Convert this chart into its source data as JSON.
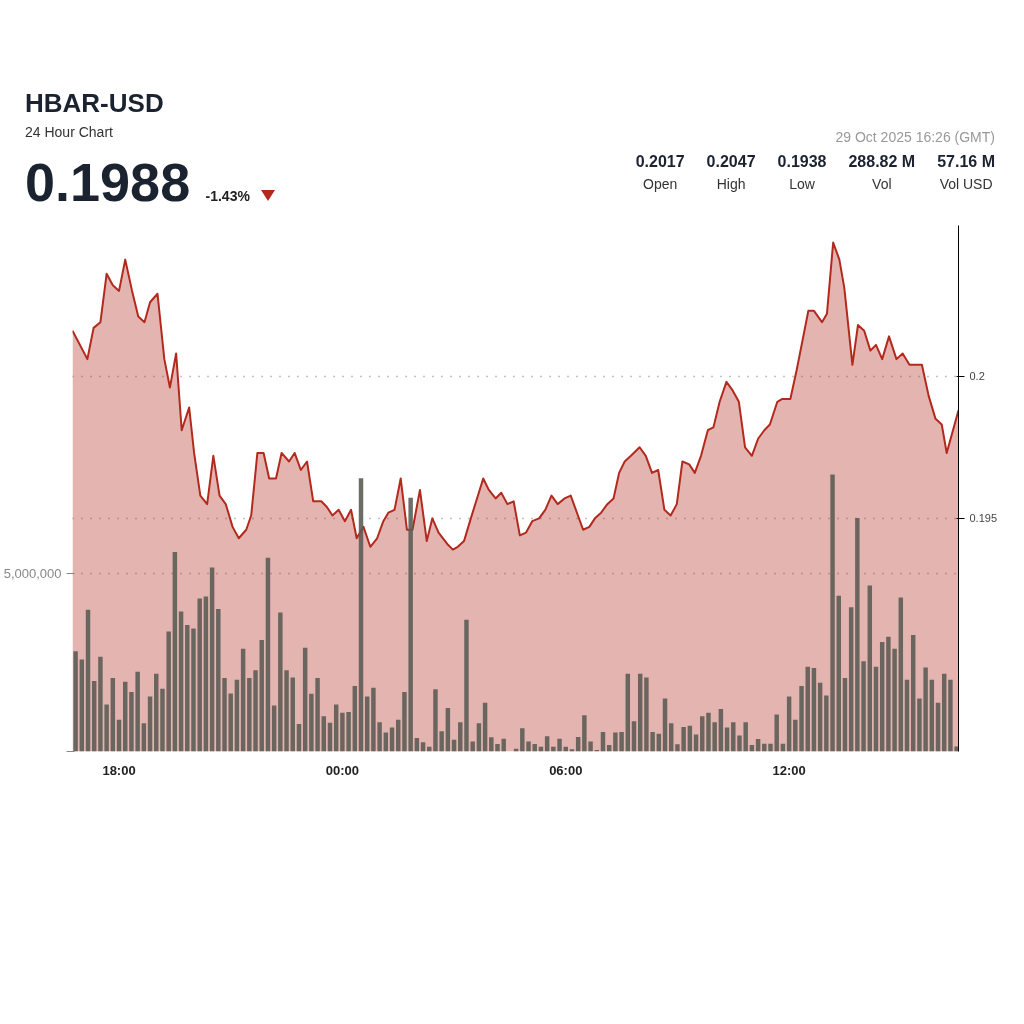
{
  "chart_data": {
    "type": "area",
    "title": "HBAR-USD",
    "subtitle": "24 Hour Chart",
    "annotations": [
      "0.1988",
      "-1.43%",
      "0.2017",
      "Open",
      "0.2047",
      "High",
      "0.1938",
      "Low",
      "288.82 M",
      "Vol",
      "57.16 M",
      "Vol USD",
      "29 Oct 2025 16:26 (GMT)"
    ],
    "xlim": [
      "2025-10-28T16:45",
      "2025-10-29T16:33"
    ],
    "xticks": [
      {
        "value": "2025-10-28T18:00",
        "label": "18:00"
      },
      {
        "value": "2025-10-29T00:00",
        "label": "00:00"
      },
      {
        "value": "2025-10-29T06:00",
        "label": "06:00"
      },
      {
        "value": "2025-10-29T12:00",
        "label": "12:00"
      }
    ],
    "ylim": [
      0.1868,
      0.2053
    ],
    "yticks": [
      0.195,
      0.2
    ],
    "y2lim": [
      0,
      14760000
    ],
    "y2ticks": [
      {
        "value": 0,
        "label": null
      },
      {
        "value": 5000000,
        "label": "5,000,000"
      }
    ],
    "grid": "y",
    "series": [
      {
        "color": "#b22a1e",
        "x": [
          "2025-10-28T16:45",
          "2025-10-28T17:09",
          "2025-10-28T17:19",
          "2025-10-28T17:30",
          "2025-10-28T17:40",
          "2025-10-28T17:50",
          "2025-10-28T18:00",
          "2025-10-28T18:10",
          "2025-10-28T18:21",
          "2025-10-28T18:31",
          "2025-10-28T18:41",
          "2025-10-28T18:50",
          "2025-10-28T19:02",
          "2025-10-28T19:13",
          "2025-10-28T19:22",
          "2025-10-28T19:32",
          "2025-10-28T19:41",
          "2025-10-28T19:53",
          "2025-10-28T20:01",
          "2025-10-28T20:11",
          "2025-10-28T20:22",
          "2025-10-28T20:32",
          "2025-10-28T20:42",
          "2025-10-28T20:52",
          "2025-10-28T21:03",
          "2025-10-28T21:13",
          "2025-10-28T21:25",
          "2025-10-28T21:33",
          "2025-10-28T21:43",
          "2025-10-28T21:53",
          "2025-10-28T22:02",
          "2025-10-28T22:13",
          "2025-10-28T22:22",
          "2025-10-28T22:34",
          "2025-10-28T22:43",
          "2025-10-28T22:53",
          "2025-10-28T23:03",
          "2025-10-28T23:13",
          "2025-10-28T23:26",
          "2025-10-28T23:35",
          "2025-10-28T23:44",
          "2025-10-28T23:54",
          "2025-10-29T00:04",
          "2025-10-29T00:14",
          "2025-10-29T00:23",
          "2025-10-29T00:34",
          "2025-10-29T00:45",
          "2025-10-29T00:56",
          "2025-10-29T01:06",
          "2025-10-29T01:14",
          "2025-10-29T01:24",
          "2025-10-29T01:34",
          "2025-10-29T01:44",
          "2025-10-29T01:53",
          "2025-10-29T02:05",
          "2025-10-29T02:16",
          "2025-10-29T02:25",
          "2025-10-29T02:35",
          "2025-10-29T02:49",
          "2025-10-29T02:58",
          "2025-10-29T03:06",
          "2025-10-29T03:16",
          "2025-10-29T03:27",
          "2025-10-29T03:37",
          "2025-10-29T03:47",
          "2025-10-29T03:56",
          "2025-10-29T04:07",
          "2025-10-29T04:16",
          "2025-10-29T04:26",
          "2025-10-29T04:36",
          "2025-10-29T04:46",
          "2025-10-29T04:56",
          "2025-10-29T05:06",
          "2025-10-29T05:17",
          "2025-10-29T05:27",
          "2025-10-29T05:37",
          "2025-10-29T05:47",
          "2025-10-29T05:58",
          "2025-10-29T06:08",
          "2025-10-29T06:28",
          "2025-10-29T06:38",
          "2025-10-29T06:47",
          "2025-10-29T06:57",
          "2025-10-29T07:07",
          "2025-10-29T07:17",
          "2025-10-29T07:26",
          "2025-10-29T07:35",
          "2025-10-29T07:45",
          "2025-10-29T07:59",
          "2025-10-29T08:09",
          "2025-10-29T08:19",
          "2025-10-29T08:29",
          "2025-10-29T08:39",
          "2025-10-29T08:49",
          "2025-10-29T08:59",
          "2025-10-29T09:08",
          "2025-10-29T09:19",
          "2025-10-29T09:28",
          "2025-10-29T09:38",
          "2025-10-29T09:49",
          "2025-10-29T09:58",
          "2025-10-29T10:08",
          "2025-10-29T10:19",
          "2025-10-29T10:29",
          "2025-10-29T10:39",
          "2025-10-29T10:49",
          "2025-10-29T11:00",
          "2025-10-29T11:10",
          "2025-10-29T11:20",
          "2025-10-29T11:29",
          "2025-10-29T11:41",
          "2025-10-29T11:49",
          "2025-10-29T12:02",
          "2025-10-29T12:12",
          "2025-10-29T12:22",
          "2025-10-29T12:31",
          "2025-10-29T12:40",
          "2025-10-29T12:53",
          "2025-10-29T13:01",
          "2025-10-29T13:11",
          "2025-10-29T13:21",
          "2025-10-29T13:29",
          "2025-10-29T13:42",
          "2025-10-29T13:51",
          "2025-10-29T14:01",
          "2025-10-29T14:11",
          "2025-10-29T14:20",
          "2025-10-29T14:30",
          "2025-10-29T14:41",
          "2025-10-29T14:53",
          "2025-10-29T15:03",
          "2025-10-29T15:14",
          "2025-10-29T15:27",
          "2025-10-29T15:34",
          "2025-10-29T15:45",
          "2025-10-29T15:56",
          "2025-10-29T16:06",
          "2025-10-29T16:14",
          "2025-10-29T16:33"
        ],
        "values": [
          0.2016,
          0.2006,
          0.2017,
          0.2019,
          0.2036,
          0.2032,
          0.203,
          0.2041,
          0.203,
          0.2021,
          0.2019,
          0.2026,
          0.2029,
          0.2006,
          0.1996,
          0.2008,
          0.1981,
          0.1989,
          0.1973,
          0.1958,
          0.1955,
          0.1972,
          0.1958,
          0.1955,
          0.1947,
          0.1943,
          0.1946,
          0.1951,
          0.1973,
          0.1973,
          0.1964,
          0.1964,
          0.1973,
          0.197,
          0.1973,
          0.1967,
          0.197,
          0.1956,
          0.1956,
          0.1954,
          0.1951,
          0.1953,
          0.1949,
          0.1953,
          0.1943,
          0.1947,
          0.194,
          0.1943,
          0.1949,
          0.1952,
          0.1953,
          0.1964,
          0.1946,
          0.1946,
          0.196,
          0.1942,
          0.195,
          0.1945,
          0.1941,
          0.1939,
          0.194,
          0.1942,
          0.195,
          0.1957,
          0.1964,
          0.196,
          0.1957,
          0.1959,
          0.1955,
          0.1956,
          0.1944,
          0.1945,
          0.1949,
          0.195,
          0.1953,
          0.1958,
          0.1955,
          0.1957,
          0.1958,
          0.1946,
          0.1947,
          0.195,
          0.1952,
          0.1955,
          0.1957,
          0.1966,
          0.197,
          0.1972,
          0.1975,
          0.1972,
          0.1966,
          0.1967,
          0.1953,
          0.1951,
          0.1955,
          0.197,
          0.1969,
          0.1966,
          0.1972,
          0.1981,
          0.1982,
          0.1991,
          0.1998,
          0.1995,
          0.1991,
          0.1975,
          0.1972,
          0.1978,
          0.1981,
          0.1983,
          0.1991,
          0.1992,
          0.1992,
          0.2002,
          0.2013,
          0.2023,
          0.2023,
          0.2019,
          0.2022,
          0.2047,
          0.2041,
          0.2031,
          0.2004,
          0.2018,
          0.2016,
          0.2009,
          0.2011,
          0.2006,
          0.2014,
          0.2006,
          0.2008,
          0.2004,
          0.2004,
          0.2004,
          0.1993,
          0.1985,
          0.1983,
          0.1973,
          0.1988
        ]
      },
      {
        "type": "bar",
        "axis": "y2",
        "color": "#5c5d56",
        "x": [
          "2025-10-28T16:50",
          "2025-10-28T17:00",
          "2025-10-28T17:10",
          "2025-10-28T17:20",
          "2025-10-28T17:30",
          "2025-10-28T17:40",
          "2025-10-28T17:50",
          "2025-10-28T18:00",
          "2025-10-28T18:10",
          "2025-10-28T18:20",
          "2025-10-28T18:30",
          "2025-10-28T18:40",
          "2025-10-28T18:50",
          "2025-10-28T19:00",
          "2025-10-28T19:10",
          "2025-10-28T19:20",
          "2025-10-28T19:30",
          "2025-10-28T19:40",
          "2025-10-28T19:50",
          "2025-10-28T20:00",
          "2025-10-28T20:10",
          "2025-10-28T20:20",
          "2025-10-28T20:30",
          "2025-10-28T20:40",
          "2025-10-28T20:50",
          "2025-10-28T21:00",
          "2025-10-28T21:10",
          "2025-10-28T21:20",
          "2025-10-28T21:30",
          "2025-10-28T21:40",
          "2025-10-28T21:50",
          "2025-10-28T22:00",
          "2025-10-28T22:10",
          "2025-10-28T22:20",
          "2025-10-28T22:30",
          "2025-10-28T22:40",
          "2025-10-28T22:50",
          "2025-10-28T23:00",
          "2025-10-28T23:10",
          "2025-10-28T23:20",
          "2025-10-28T23:30",
          "2025-10-28T23:40",
          "2025-10-28T23:50",
          "2025-10-29T00:00",
          "2025-10-29T00:10",
          "2025-10-29T00:20",
          "2025-10-29T00:30",
          "2025-10-29T00:40",
          "2025-10-29T00:50",
          "2025-10-29T01:00",
          "2025-10-29T01:10",
          "2025-10-29T01:20",
          "2025-10-29T01:30",
          "2025-10-29T01:40",
          "2025-10-29T01:50",
          "2025-10-29T02:00",
          "2025-10-29T02:10",
          "2025-10-29T02:20",
          "2025-10-29T02:30",
          "2025-10-29T02:40",
          "2025-10-29T02:50",
          "2025-10-29T03:00",
          "2025-10-29T03:10",
          "2025-10-29T03:20",
          "2025-10-29T03:30",
          "2025-10-29T03:40",
          "2025-10-29T03:50",
          "2025-10-29T04:00",
          "2025-10-29T04:10",
          "2025-10-29T04:20",
          "2025-10-29T04:30",
          "2025-10-29T04:40",
          "2025-10-29T04:50",
          "2025-10-29T05:00",
          "2025-10-29T05:10",
          "2025-10-29T05:20",
          "2025-10-29T05:30",
          "2025-10-29T05:40",
          "2025-10-29T05:50",
          "2025-10-29T06:00",
          "2025-10-29T06:10",
          "2025-10-29T06:20",
          "2025-10-29T06:30",
          "2025-10-29T06:40",
          "2025-10-29T06:50",
          "2025-10-29T07:00",
          "2025-10-29T07:10",
          "2025-10-29T07:20",
          "2025-10-29T07:30",
          "2025-10-29T07:40",
          "2025-10-29T07:50",
          "2025-10-29T08:00",
          "2025-10-29T08:10",
          "2025-10-29T08:20",
          "2025-10-29T08:30",
          "2025-10-29T08:40",
          "2025-10-29T08:50",
          "2025-10-29T09:00",
          "2025-10-29T09:10",
          "2025-10-29T09:20",
          "2025-10-29T09:30",
          "2025-10-29T09:40",
          "2025-10-29T09:50",
          "2025-10-29T10:00",
          "2025-10-29T10:10",
          "2025-10-29T10:20",
          "2025-10-29T10:30",
          "2025-10-29T10:40",
          "2025-10-29T10:50",
          "2025-10-29T11:00",
          "2025-10-29T11:10",
          "2025-10-29T11:20",
          "2025-10-29T11:30",
          "2025-10-29T11:40",
          "2025-10-29T11:50",
          "2025-10-29T12:00",
          "2025-10-29T12:10",
          "2025-10-29T12:20",
          "2025-10-29T12:30",
          "2025-10-29T12:40",
          "2025-10-29T12:50",
          "2025-10-29T13:00",
          "2025-10-29T13:10",
          "2025-10-29T13:20",
          "2025-10-29T13:30",
          "2025-10-29T13:40",
          "2025-10-29T13:50",
          "2025-10-29T14:00",
          "2025-10-29T14:10",
          "2025-10-29T14:20",
          "2025-10-29T14:30",
          "2025-10-29T14:40",
          "2025-10-29T14:50",
          "2025-10-29T15:00",
          "2025-10-29T15:10",
          "2025-10-29T15:20",
          "2025-10-29T15:30",
          "2025-10-29T15:40",
          "2025-10-29T15:50",
          "2025-10-29T16:00",
          "2025-10-29T16:10",
          "2025-10-29T16:20",
          "2025-10-29T16:30"
        ],
        "values": [
          2810000,
          2580000,
          3980000,
          1980000,
          2660000,
          1320000,
          2060000,
          890000,
          1960000,
          1670000,
          2240000,
          790000,
          1540000,
          2180000,
          1760000,
          3370000,
          5600000,
          3930000,
          3550000,
          3450000,
          4290000,
          4350000,
          5160000,
          4000000,
          2060000,
          1630000,
          2010000,
          2880000,
          2060000,
          2280000,
          3130000,
          5440000,
          1290000,
          3900000,
          2280000,
          2080000,
          770000,
          2910000,
          1620000,
          2060000,
          990000,
          810000,
          1320000,
          1090000,
          1110000,
          1840000,
          7670000,
          1540000,
          1790000,
          820000,
          530000,
          670000,
          890000,
          1670000,
          7120000,
          380000,
          260000,
          130000,
          1750000,
          570000,
          1220000,
          330000,
          820000,
          3700000,
          280000,
          790000,
          1370000,
          400000,
          210000,
          360000,
          null,
          80000,
          650000,
          280000,
          210000,
          130000,
          430000,
          130000,
          360000,
          130000,
          60000,
          410000,
          1020000,
          280000,
          40000,
          550000,
          180000,
          530000,
          550000,
          2180000,
          850000,
          2180000,
          2080000,
          550000,
          500000,
          1490000,
          790000,
          200000,
          690000,
          720000,
          480000,
          990000,
          1090000,
          820000,
          1190000,
          670000,
          820000,
          450000,
          820000,
          180000,
          350000,
          220000,
          220000,
          1040000,
          220000,
          1540000,
          890000,
          1840000,
          2380000,
          2340000,
          1930000,
          1570000,
          7770000,
          4370000,
          2060000,
          4050000,
          6550000,
          2530000,
          4660000,
          2380000,
          3070000,
          3220000,
          2880000,
          4320000,
          2010000,
          3270000,
          1490000,
          2360000,
          2010000,
          1370000,
          2180000,
          2010000,
          140000
        ]
      }
    ]
  }
}
